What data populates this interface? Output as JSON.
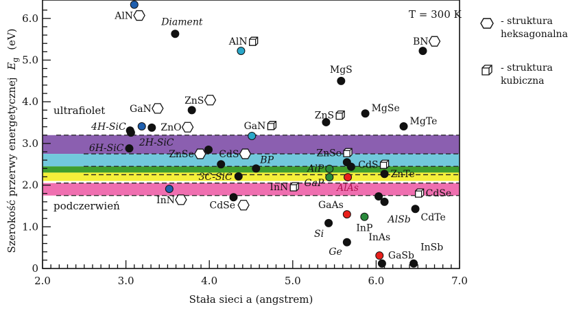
{
  "chart_data": {
    "type": "scatter",
    "xlabel": "Stała sieci a (angstrem)",
    "ylabel_main": "Szerokość przerwy energetycznej",
    "ylabel_symbol": "E",
    "ylabel_sub": "g",
    "ylabel_unit": "(eV)",
    "xlim": [
      2.0,
      7.0
    ],
    "ylim": [
      0,
      6.45
    ],
    "xticks": [
      "2.0",
      "3.0",
      "4.0",
      "5.0",
      "6.0",
      "7.0"
    ],
    "yticks": [
      "0",
      "1.0",
      "2.0",
      "3.0",
      "4.0",
      "5.0",
      "6.0"
    ],
    "annotation": "T = 300 K",
    "region_labels": {
      "uv": "ultrafiolet",
      "ir": "podczerwień"
    },
    "bands": [
      {
        "name": "violet",
        "from": 2.75,
        "to": 3.2,
        "color": "#8b5fb0"
      },
      {
        "name": "blue",
        "from": 2.45,
        "to": 2.75,
        "color": "#72c8dc"
      },
      {
        "name": "green",
        "from": 2.3,
        "to": 2.45,
        "color": "#3f9e2e"
      },
      {
        "name": "yellow",
        "from": 2.1,
        "to": 2.3,
        "color": "#f5ef3a"
      },
      {
        "name": "red",
        "from": 1.75,
        "to": 2.05,
        "color": "#ef6fb0"
      }
    ],
    "dashed_levels": [
      3.2,
      2.75,
      2.45,
      2.25,
      2.05,
      1.75
    ],
    "marker_colors": {
      "black": "#111111",
      "blue": "#1f5fae",
      "cyan": "#2aa7c9",
      "green": "#2a8a3c",
      "red": "#e8201c"
    },
    "points": [
      {
        "a": 3.1,
        "eg": 6.33,
        "m": "blue",
        "label": ""
      },
      {
        "a": 3.16,
        "eg": 6.07,
        "m": "hex",
        "label": "AlN"
      },
      {
        "a": 3.59,
        "eg": 5.63,
        "m": "black",
        "label": "Diament",
        "italic": true
      },
      {
        "a": 4.38,
        "eg": 5.22,
        "m": "cyan",
        "label": ""
      },
      {
        "a": 4.53,
        "eg": 5.45,
        "m": "cube",
        "label": "AlN"
      },
      {
        "a": 6.56,
        "eg": 5.22,
        "m": "black",
        "label": ""
      },
      {
        "a": 6.7,
        "eg": 5.45,
        "m": "hex",
        "label": "BN"
      },
      {
        "a": 5.58,
        "eg": 4.5,
        "m": "black",
        "label": "MgS"
      },
      {
        "a": 5.87,
        "eg": 3.72,
        "m": "black",
        "label": "MgSe"
      },
      {
        "a": 6.33,
        "eg": 3.41,
        "m": "black",
        "label": "MgTe"
      },
      {
        "a": 3.79,
        "eg": 3.8,
        "m": "black",
        "label": ""
      },
      {
        "a": 4.01,
        "eg": 4.04,
        "m": "hex",
        "label": "ZnS"
      },
      {
        "a": 5.4,
        "eg": 3.51,
        "m": "black",
        "label": ""
      },
      {
        "a": 5.57,
        "eg": 3.68,
        "m": "cube",
        "label": "ZnS"
      },
      {
        "a": 3.38,
        "eg": 3.84,
        "m": "hex",
        "label": "GaN"
      },
      {
        "a": 3.19,
        "eg": 3.41,
        "m": "blue",
        "label": ""
      },
      {
        "a": 3.31,
        "eg": 3.38,
        "m": "black",
        "label": ""
      },
      {
        "a": 3.74,
        "eg": 3.39,
        "m": "hex",
        "label": "ZnO"
      },
      {
        "a": 3.05,
        "eg": 3.31,
        "m": "black",
        "label": "4H-SiC",
        "italic": true
      },
      {
        "a": 3.06,
        "eg": 3.26,
        "m": "black",
        "label": "2H-SiC",
        "italic": true
      },
      {
        "a": 3.04,
        "eg": 2.88,
        "m": "black",
        "label": "6H-SiC",
        "italic": true
      },
      {
        "a": 4.75,
        "eg": 3.43,
        "m": "cube",
        "label": "GaN"
      },
      {
        "a": 4.51,
        "eg": 3.18,
        "m": "cyan",
        "label": ""
      },
      {
        "a": 3.89,
        "eg": 2.75,
        "m": "hex",
        "label": "ZnSe"
      },
      {
        "a": 3.99,
        "eg": 2.85,
        "m": "black",
        "label": ""
      },
      {
        "a": 4.43,
        "eg": 2.75,
        "m": "hex",
        "label": "CdS"
      },
      {
        "a": 4.14,
        "eg": 2.5,
        "m": "black",
        "label": ""
      },
      {
        "a": 4.56,
        "eg": 2.4,
        "m": "black",
        "label": "BP",
        "italic": true
      },
      {
        "a": 4.35,
        "eg": 2.21,
        "m": "black",
        "label": "3C-SiC",
        "italic": true
      },
      {
        "a": 3.52,
        "eg": 1.91,
        "m": "blue",
        "label": ""
      },
      {
        "a": 3.66,
        "eg": 1.65,
        "m": "hex",
        "label": "InN"
      },
      {
        "a": 4.29,
        "eg": 1.71,
        "m": "black",
        "label": ""
      },
      {
        "a": 4.41,
        "eg": 1.52,
        "m": "hex",
        "label": "CdSe"
      },
      {
        "a": 5.02,
        "eg": 1.96,
        "m": "cube",
        "label": "InN"
      },
      {
        "a": 5.44,
        "eg": 2.39,
        "m": "green",
        "label": "AlP",
        "italic": true
      },
      {
        "a": 5.44,
        "eg": 2.19,
        "m": "green",
        "label": "GaP",
        "italic": true
      },
      {
        "a": 5.66,
        "eg": 2.19,
        "m": "red",
        "label": "AlAs",
        "italic": true
      },
      {
        "a": 5.65,
        "eg": 2.55,
        "m": "black",
        "label": ""
      },
      {
        "a": 5.66,
        "eg": 2.78,
        "m": "cube",
        "label": "ZnSe"
      },
      {
        "a": 5.7,
        "eg": 2.44,
        "m": "black",
        "label": ""
      },
      {
        "a": 6.1,
        "eg": 2.5,
        "m": "cube",
        "label": "CdS"
      },
      {
        "a": 6.1,
        "eg": 2.27,
        "m": "black",
        "label": "ZnTe"
      },
      {
        "a": 6.03,
        "eg": 1.73,
        "m": "black",
        "label": ""
      },
      {
        "a": 6.52,
        "eg": 1.81,
        "m": "cube",
        "label": "CdSe"
      },
      {
        "a": 6.1,
        "eg": 1.6,
        "m": "black",
        "label": "AlSb",
        "italic": true
      },
      {
        "a": 6.47,
        "eg": 1.43,
        "m": "black",
        "label": "CdTe"
      },
      {
        "a": 5.65,
        "eg": 1.3,
        "m": "red",
        "label": "GaAs"
      },
      {
        "a": 5.86,
        "eg": 1.24,
        "m": "green",
        "label": "InP"
      },
      {
        "a": 5.43,
        "eg": 1.09,
        "m": "black",
        "label": "Si",
        "italic": true
      },
      {
        "a": 5.65,
        "eg": 0.63,
        "m": "black",
        "label": "Ge",
        "italic": true
      },
      {
        "a": 6.04,
        "eg": 0.31,
        "m": "red",
        "label": "InAs"
      },
      {
        "a": 6.07,
        "eg": 0.12,
        "m": "black",
        "label": "GaSb"
      },
      {
        "a": 6.45,
        "eg": 0.12,
        "m": "black",
        "label": "InSb"
      }
    ]
  },
  "legend": [
    {
      "marker": "hex",
      "text": "- struktura heksagonalna"
    },
    {
      "marker": "cube",
      "text": "- struktura kubiczna"
    }
  ]
}
